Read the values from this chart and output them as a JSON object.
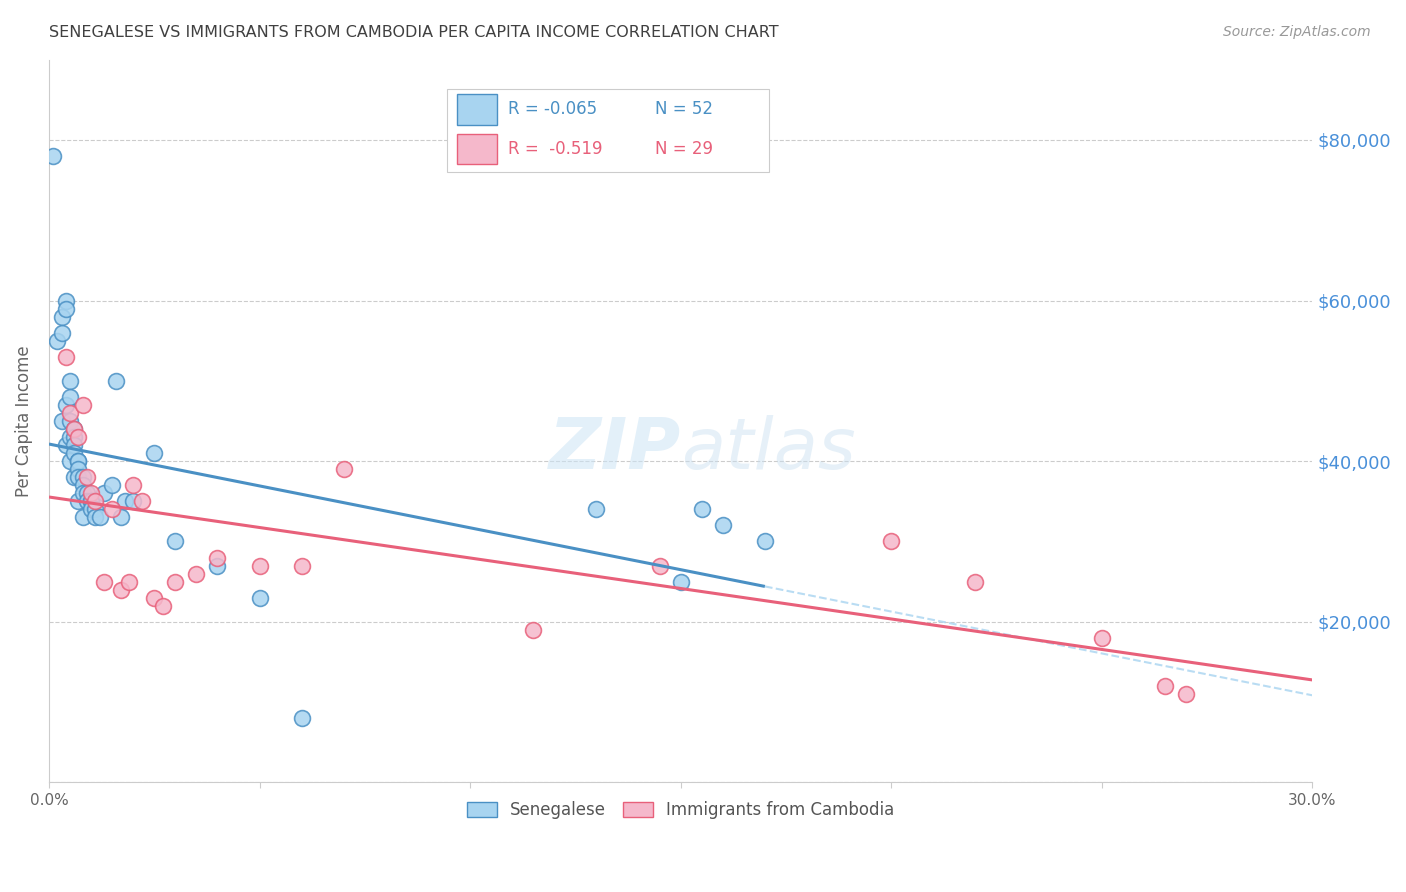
{
  "title": "SENEGALESE VS IMMIGRANTS FROM CAMBODIA PER CAPITA INCOME CORRELATION CHART",
  "source": "Source: ZipAtlas.com",
  "ylabel": "Per Capita Income",
  "xlim": [
    0.0,
    0.3
  ],
  "ylim": [
    0,
    90000
  ],
  "yticks": [
    0,
    20000,
    40000,
    60000,
    80000
  ],
  "xticks": [
    0.0,
    0.05,
    0.1,
    0.15,
    0.2,
    0.25,
    0.3
  ],
  "xtick_labels": [
    "0.0%",
    "",
    "",
    "",
    "",
    "",
    "30.0%"
  ],
  "ytick_labels": [
    "",
    "$20,000",
    "$40,000",
    "$60,000",
    "$80,000"
  ],
  "blue_scatter_color": "#a8d4f0",
  "pink_scatter_color": "#f5b8cb",
  "blue_line_color": "#4a90c4",
  "pink_line_color": "#e8607a",
  "blue_dash_color": "#a8d4f0",
  "legend_R_blue": "R = -0.065",
  "legend_N_blue": "N = 52",
  "legend_R_pink": "R =  -0.519",
  "legend_N_pink": "N = 29",
  "background_color": "#ffffff",
  "grid_color": "#cccccc",
  "title_color": "#404040",
  "right_tick_color": "#4a90d9",
  "senegalese_x": [
    0.001,
    0.002,
    0.003,
    0.003,
    0.003,
    0.004,
    0.004,
    0.004,
    0.004,
    0.005,
    0.005,
    0.005,
    0.005,
    0.005,
    0.006,
    0.006,
    0.006,
    0.006,
    0.006,
    0.007,
    0.007,
    0.007,
    0.007,
    0.007,
    0.008,
    0.008,
    0.008,
    0.008,
    0.009,
    0.009,
    0.01,
    0.01,
    0.01,
    0.011,
    0.011,
    0.012,
    0.013,
    0.015,
    0.016,
    0.017,
    0.018,
    0.02,
    0.025,
    0.03,
    0.04,
    0.05,
    0.06,
    0.13,
    0.15,
    0.155,
    0.16,
    0.17
  ],
  "senegalese_y": [
    78000,
    55000,
    58000,
    56000,
    45000,
    60000,
    59000,
    47000,
    42000,
    50000,
    48000,
    45000,
    43000,
    40000,
    44000,
    43000,
    42000,
    41000,
    38000,
    40000,
    40000,
    39000,
    38000,
    35000,
    38000,
    37000,
    36000,
    33000,
    36000,
    35000,
    35000,
    35000,
    34000,
    34000,
    33000,
    33000,
    36000,
    37000,
    50000,
    33000,
    35000,
    35000,
    41000,
    30000,
    27000,
    23000,
    8000,
    34000,
    25000,
    34000,
    32000,
    30000
  ],
  "cambodia_x": [
    0.004,
    0.005,
    0.006,
    0.007,
    0.008,
    0.009,
    0.01,
    0.011,
    0.013,
    0.015,
    0.017,
    0.019,
    0.02,
    0.022,
    0.025,
    0.027,
    0.03,
    0.035,
    0.04,
    0.05,
    0.06,
    0.07,
    0.115,
    0.145,
    0.2,
    0.22,
    0.25,
    0.265,
    0.27
  ],
  "cambodia_y": [
    53000,
    46000,
    44000,
    43000,
    47000,
    38000,
    36000,
    35000,
    25000,
    34000,
    24000,
    25000,
    37000,
    35000,
    23000,
    22000,
    25000,
    26000,
    28000,
    27000,
    27000,
    39000,
    19000,
    27000,
    30000,
    25000,
    18000,
    12000,
    11000
  ]
}
